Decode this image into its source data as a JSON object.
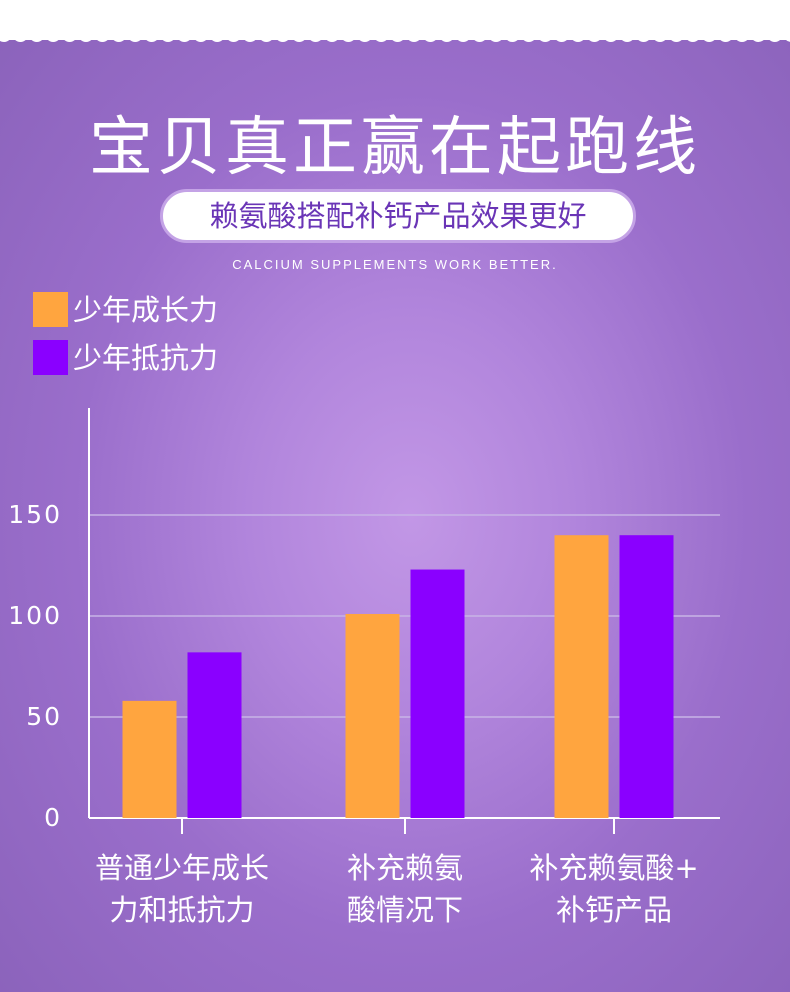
{
  "header": {
    "title": "宝贝真正赢在起跑线",
    "subtitle": "赖氨酸搭配补钙产品效果更好",
    "tagline": "CALCIUM SUPPLEMENTS WORK BETTER."
  },
  "colors": {
    "series_1": "#ffa53f",
    "series_2": "#8a00ff",
    "grid": "#c8b4e6",
    "axis": "#ffffff"
  },
  "chart_data": {
    "type": "bar",
    "categories": [
      [
        "普通少年成长",
        "力和抵抗力"
      ],
      [
        "补充赖氨",
        "酸情况下"
      ],
      [
        "补充赖氨酸+",
        "补钙产品"
      ]
    ],
    "series": [
      {
        "name": "少年成长力",
        "values": [
          58,
          101,
          140
        ]
      },
      {
        "name": "少年抵抗力",
        "values": [
          82,
          123,
          140
        ]
      }
    ],
    "yticks": [
      "0",
      "50",
      "100",
      "150"
    ],
    "ytick_values": [
      0,
      50,
      100,
      150
    ],
    "ylim": [
      0,
      200
    ],
    "grid": true,
    "legend_position": "top-left"
  }
}
